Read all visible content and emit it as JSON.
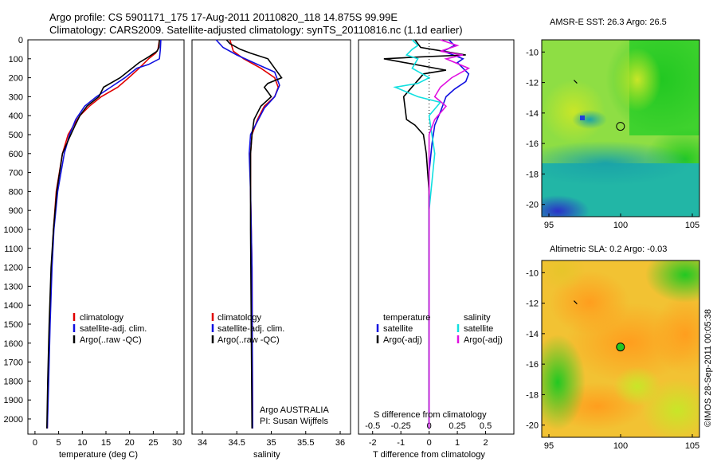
{
  "header": {
    "line1": "Argo profile: CS 5901171_175 17-Aug-2011 20110820_118 14.875S 99.99E",
    "line2": "Climatology: CARS2009. Satellite-adjusted climatology: synTS_20110816.nc (1.1d earlier)"
  },
  "colors": {
    "climatology": "#e00000",
    "satellite": "#1010e0",
    "argo": "#000000",
    "sat_salinity": "#10e0e0",
    "argo_salinity": "#e010e0"
  },
  "chart_data": [
    {
      "type": "line",
      "title": "",
      "xlabel": "temperature (deg C)",
      "ylabel": "",
      "xlim": [
        -1.5,
        31.5
      ],
      "ylim": [
        2080,
        0
      ],
      "xticks": [
        "0",
        "5",
        "10",
        "15",
        "20",
        "25",
        "30"
      ],
      "yticks": [
        "0",
        "100",
        "200",
        "300",
        "400",
        "500",
        "600",
        "700",
        "800",
        "900",
        "1000",
        "1100",
        "1200",
        "1300",
        "1400",
        "1500",
        "1600",
        "1700",
        "1800",
        "1900",
        "2000"
      ],
      "legend": {
        "position": "lower-center",
        "entries": [
          "climatology",
          "satellite-adj. clim.",
          "Argo(..raw -QC)"
        ]
      },
      "series": [
        {
          "name": "climatology",
          "x": [
            26.3,
            26,
            25.5,
            24,
            22,
            19.8,
            17.5,
            14,
            11.5,
            9.5,
            8.2,
            7,
            5.8,
            4.5,
            3.9,
            3.5,
            3.1,
            2.8,
            2.6
          ],
          "y": [
            0,
            50,
            70,
            100,
            150,
            200,
            250,
            300,
            350,
            400,
            450,
            500,
            600,
            800,
            1000,
            1200,
            1500,
            1800,
            2050
          ]
        },
        {
          "name": "satellite-adj. clim.",
          "x": [
            26.6,
            26.5,
            26.3,
            24,
            21.5,
            19,
            16,
            13,
            10.5,
            8.6,
            7.3,
            6.2,
            4.8,
            4,
            3.6,
            3.2,
            2.9,
            2.6
          ],
          "y": [
            0,
            50,
            100,
            130,
            150,
            200,
            250,
            300,
            350,
            420,
            500,
            600,
            800,
            1000,
            1200,
            1500,
            1800,
            2050
          ]
        },
        {
          "name": "Argo(..raw -QC)",
          "x": [
            26.3,
            26.2,
            25.8,
            24,
            22,
            20.5,
            18,
            14.5,
            13.5,
            11,
            9.5,
            8.5,
            7.2,
            5.8,
            4.6,
            3.9,
            3.4,
            3,
            2.7,
            2.5
          ],
          "y": [
            0,
            40,
            60,
            90,
            120,
            150,
            200,
            250,
            300,
            350,
            400,
            450,
            520,
            600,
            800,
            1000,
            1200,
            1500,
            1800,
            2050
          ]
        }
      ]
    },
    {
      "type": "line",
      "title": "",
      "xlabel": "salinity",
      "ylabel": "",
      "xlim": [
        33.85,
        36.15
      ],
      "ylim": [
        2080,
        0
      ],
      "xticks": [
        "34",
        "34.5",
        "35",
        "35.5",
        "36"
      ],
      "legend": {
        "position": "lower-center",
        "entries": [
          "climatology",
          "satellite-adj. clim.",
          "Argo(..raw -QC)"
        ]
      },
      "annotation": [
        "Argo AUSTRALIA",
        "PI: Susan Wijffels"
      ],
      "series": [
        {
          "name": "climatology",
          "x": [
            34.4,
            34.45,
            34.6,
            34.85,
            35.05,
            35.1,
            35.05,
            34.9,
            34.8,
            34.72,
            34.7,
            34.7,
            34.72,
            34.73
          ],
          "y": [
            0,
            60,
            100,
            150,
            200,
            250,
            300,
            350,
            420,
            500,
            600,
            800,
            1200,
            2050
          ]
        },
        {
          "name": "satellite-adj. clim.",
          "x": [
            34.2,
            34.3,
            34.5,
            34.8,
            35.05,
            35.12,
            35.05,
            34.9,
            34.8,
            34.7,
            34.68,
            34.7,
            34.72,
            34.73
          ],
          "y": [
            0,
            40,
            80,
            130,
            170,
            240,
            300,
            360,
            430,
            500,
            600,
            800,
            1200,
            2050
          ]
        },
        {
          "name": "Argo(..raw -QC)",
          "x": [
            34.35,
            34.4,
            34.55,
            34.7,
            34.95,
            35.05,
            35.15,
            34.95,
            34.9,
            35.0,
            34.85,
            34.75,
            34.72,
            34.7,
            34.7,
            34.72
          ],
          "y": [
            0,
            20,
            50,
            70,
            100,
            150,
            200,
            230,
            250,
            300,
            350,
            420,
            500,
            600,
            1000,
            2050
          ]
        }
      ]
    },
    {
      "type": "line",
      "title": "",
      "xlabel": "T difference from climatology",
      "xlabel_top": "S difference from climatology",
      "xlim_T": [
        -2.5,
        3.0
      ],
      "xlim_S": [
        -0.625,
        0.75
      ],
      "ylim": [
        2080,
        0
      ],
      "xticks_T": [
        "-2",
        "-1",
        "0",
        "1",
        "2"
      ],
      "xticks_S": [
        "-0.5",
        "-0.25",
        "0",
        "0.25",
        "0.5"
      ],
      "legend": {
        "position": "lower",
        "entries": [
          "temperature",
          "satellite",
          "Argo(-adj)",
          "salinity",
          "satellite",
          "Argo(-adj)"
        ]
      },
      "series": [
        {
          "name": "temperature satellite",
          "axis": "T",
          "x": [
            0.7,
            0.9,
            0.5,
            1.2,
            1.0,
            1.2,
            1.4,
            1.3,
            0.9,
            0.6,
            0.4,
            0.2,
            0.1,
            0.0,
            0.0,
            0.0
          ],
          "y": [
            0,
            30,
            60,
            100,
            120,
            150,
            180,
            220,
            260,
            300,
            380,
            450,
            550,
            700,
            1000,
            2050
          ]
        },
        {
          "name": "temperature Argo(-adj)",
          "axis": "T",
          "x": [
            -0.5,
            -0.3,
            0.5,
            1.3,
            -0.3,
            -1.6,
            0.6,
            -0.2,
            -0.9,
            -0.8,
            -0.5,
            -0.2,
            -0.1,
            0.0,
            0.0
          ],
          "y": [
            0,
            40,
            60,
            80,
            90,
            100,
            160,
            180,
            300,
            420,
            450,
            500,
            600,
            800,
            2050
          ]
        },
        {
          "name": "salinity satellite",
          "axis": "S",
          "x": [
            -0.15,
            -0.1,
            -0.15,
            -0.2,
            -0.1,
            -0.15,
            0.0,
            -0.1,
            -0.3,
            -0.1,
            0.1,
            0.0,
            0.05,
            0.0,
            0.0,
            0.0
          ],
          "y": [
            0,
            30,
            50,
            80,
            100,
            150,
            200,
            230,
            250,
            300,
            330,
            400,
            600,
            900,
            1300,
            2050
          ]
        },
        {
          "name": "salinity Argo(-adj)",
          "axis": "S",
          "x": [
            0.1,
            0.25,
            0.1,
            0.3,
            0.15,
            0.35,
            0.2,
            0.1,
            0.05,
            0.15,
            0.05,
            0.0,
            0.0,
            0.0
          ],
          "y": [
            0,
            30,
            60,
            80,
            100,
            150,
            200,
            250,
            300,
            350,
            420,
            500,
            800,
            2050
          ]
        }
      ]
    },
    {
      "type": "heatmap",
      "title": "AMSR-E SST: 26.3  Argo: 26.5",
      "xticks": [
        "95",
        "100",
        "105"
      ],
      "yticks": [
        "-10",
        "-12",
        "-14",
        "-16",
        "-18",
        "-20"
      ],
      "xlim": [
        94.5,
        105.5
      ],
      "ylim": [
        -20.8,
        -9.2
      ],
      "argo_position": {
        "lon": 99.99,
        "lat": -14.875
      },
      "previous_position": {
        "lon": 96.8,
        "lat": -12
      }
    },
    {
      "type": "heatmap",
      "title": "Altimetric SLA: 0.2  Argo: -0.03",
      "xticks": [
        "95",
        "100",
        "105"
      ],
      "yticks": [
        "-10",
        "-12",
        "-14",
        "-16",
        "-18",
        "-20"
      ],
      "xlim": [
        94.5,
        105.5
      ],
      "ylim": [
        -20.8,
        -9.2
      ],
      "argo_position": {
        "lon": 99.99,
        "lat": -14.875
      },
      "previous_position": {
        "lon": 96.8,
        "lat": -12
      }
    }
  ],
  "credit": "©IMOS 28-Sep-2011 00:05:38"
}
